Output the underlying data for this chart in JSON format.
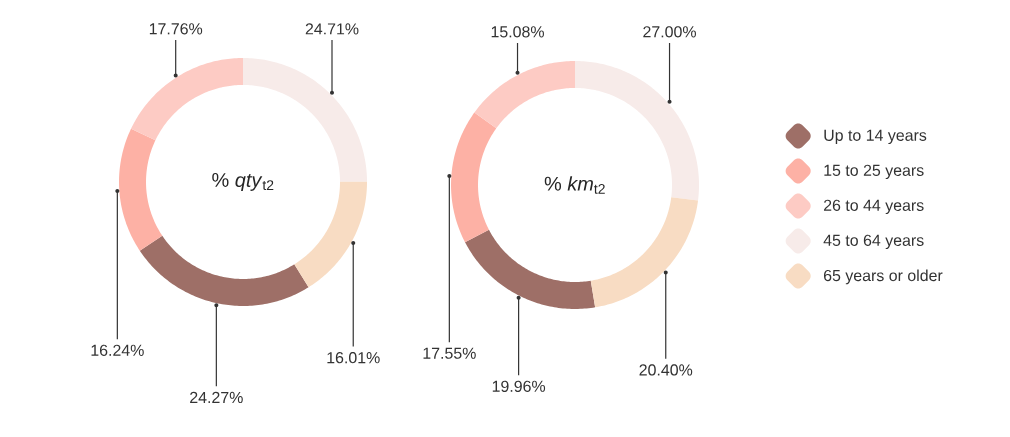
{
  "chart_data": [
    {
      "type": "donut",
      "title": "% *qty*$_{t2}$",
      "values": [
        24.27,
        16.24,
        17.76,
        24.71,
        16.01
      ],
      "value_labels": [
        "24.27%",
        "16.24%",
        "17.76%",
        "24.71%",
        "16.01%"
      ],
      "colors": [
        "#9e6f67",
        "#fdb1a5",
        "#fdcbc4",
        "#f7ebe9",
        "#f8dcc3"
      ]
    },
    {
      "type": "donut",
      "title": "% *km*$_{t2}$",
      "categories": [
        "Up to 14 years",
        "15 to 25 years",
        "26 to 44 years",
        "45 to 64 years",
        "65 years or older"
      ],
      "values": [
        19.96,
        17.55,
        15.08,
        27.0,
        20.4
      ],
      "value_labels": [
        "19.96%",
        "17.55%",
        "15.08%",
        "27.00%",
        "20.40%"
      ],
      "colors": [
        "#9e6f67",
        "#fdb1a5",
        "#fdcbc4",
        "#f7ebe9",
        "#f8dcc3"
      ],
      "legend": "right"
    }
  ]
}
